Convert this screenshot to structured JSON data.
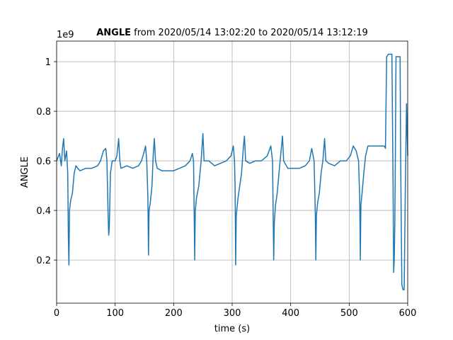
{
  "chart_data": {
    "type": "line",
    "title_bold": "ANGLE",
    "title_rest": "from 2020/05/14 13:02:20 to 2020/05/14 13:12:19",
    "x_label": "time (s)",
    "y_label": "ANGLE",
    "y_offset_label": "1e9",
    "xlim": [
      0,
      600
    ],
    "xticks": [
      0,
      100,
      200,
      300,
      400,
      500,
      600
    ],
    "ylim": [
      0.026,
      1.083
    ],
    "yticks": [
      0.2,
      0.4,
      0.6,
      0.8,
      1.0
    ],
    "grid": true,
    "series": [
      {
        "name": "ANGLE",
        "color": "#1f77b4",
        "x": [
          0,
          5,
          8,
          10,
          12,
          14,
          17,
          19,
          20,
          21,
          22,
          24,
          27,
          30,
          33,
          36,
          40,
          50,
          60,
          70,
          75,
          80,
          84,
          86,
          88,
          89,
          90,
          92,
          95,
          100,
          103,
          106,
          108,
          110,
          120,
          130,
          140,
          145,
          150,
          152,
          154,
          156,
          157,
          158,
          160,
          163,
          165,
          167,
          169,
          172,
          180,
          190,
          200,
          210,
          220,
          228,
          232,
          234,
          235,
          236,
          237,
          239,
          243,
          247,
          250,
          252,
          260,
          270,
          280,
          290,
          298,
          302,
          304,
          305,
          306,
          307,
          310,
          313,
          316,
          319,
          321,
          323,
          330,
          340,
          350,
          360,
          366,
          369,
          370,
          371,
          372,
          374,
          377,
          380,
          384,
          386,
          388,
          395,
          405,
          415,
          425,
          432,
          436,
          440,
          442,
          443,
          444,
          446,
          449,
          452,
          455,
          458,
          460,
          465,
          475,
          485,
          495,
          502,
          507,
          512,
          516,
          518,
          519,
          520,
          522,
          525,
          528,
          532,
          540,
          550,
          560,
          562,
          564,
          567,
          573,
          575,
          576,
          577,
          578,
          579,
          580,
          587,
          588,
          590,
          592,
          594,
          596,
          598,
          600
        ],
        "values": [
          0.6,
          0.63,
          0.58,
          0.65,
          0.69,
          0.6,
          0.64,
          0.55,
          0.3,
          0.18,
          0.4,
          0.44,
          0.47,
          0.55,
          0.58,
          0.57,
          0.56,
          0.57,
          0.57,
          0.58,
          0.6,
          0.64,
          0.65,
          0.6,
          0.38,
          0.3,
          0.33,
          0.55,
          0.6,
          0.6,
          0.62,
          0.69,
          0.6,
          0.57,
          0.58,
          0.57,
          0.58,
          0.6,
          0.64,
          0.66,
          0.6,
          0.45,
          0.22,
          0.4,
          0.43,
          0.5,
          0.62,
          0.69,
          0.6,
          0.57,
          0.56,
          0.56,
          0.56,
          0.57,
          0.58,
          0.6,
          0.63,
          0.6,
          0.4,
          0.2,
          0.4,
          0.45,
          0.5,
          0.6,
          0.71,
          0.6,
          0.6,
          0.58,
          0.59,
          0.6,
          0.62,
          0.66,
          0.6,
          0.5,
          0.18,
          0.38,
          0.45,
          0.5,
          0.55,
          0.65,
          0.7,
          0.6,
          0.59,
          0.6,
          0.6,
          0.62,
          0.66,
          0.6,
          0.4,
          0.2,
          0.35,
          0.42,
          0.47,
          0.55,
          0.65,
          0.7,
          0.6,
          0.57,
          0.57,
          0.57,
          0.58,
          0.6,
          0.65,
          0.6,
          0.4,
          0.2,
          0.38,
          0.43,
          0.47,
          0.55,
          0.6,
          0.69,
          0.6,
          0.59,
          0.58,
          0.6,
          0.6,
          0.62,
          0.66,
          0.64,
          0.6,
          0.45,
          0.2,
          0.42,
          0.47,
          0.55,
          0.62,
          0.66,
          0.66,
          0.66,
          0.66,
          0.65,
          1.02,
          1.03,
          1.03,
          0.5,
          0.15,
          0.2,
          0.35,
          0.65,
          1.02,
          1.02,
          0.6,
          0.1,
          0.08,
          0.08,
          0.5,
          0.83,
          0.62
        ]
      }
    ]
  }
}
